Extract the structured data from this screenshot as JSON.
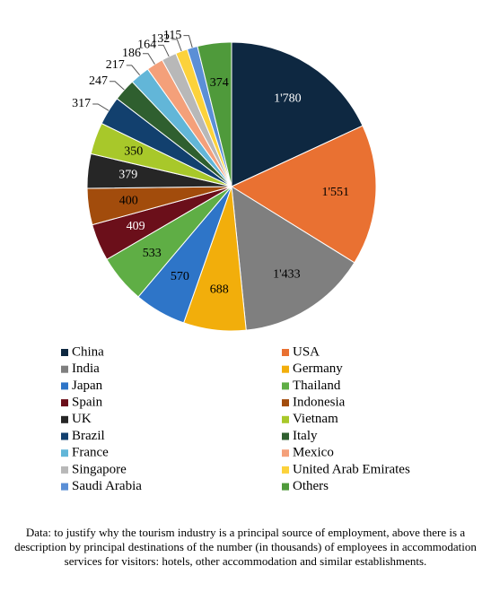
{
  "chart_data": {
    "type": "pie",
    "categories": [
      "China",
      "USA",
      "India",
      "Germany",
      "Japan",
      "Thailand",
      "Spain",
      "Indonesia",
      "UK",
      "Vietnam",
      "Brazil",
      "Italy",
      "France",
      "Mexico",
      "Singapore",
      "United Arab Emirates",
      "Saudi Arabia",
      "Others"
    ],
    "values": [
      1780,
      1551,
      1433,
      688,
      570,
      533,
      409,
      400,
      379,
      350,
      317,
      247,
      217,
      186,
      164,
      132,
      115,
      374
    ],
    "value_labels": [
      "1'780",
      "1'551",
      "1'433",
      "688",
      "570",
      "533",
      "409",
      "400",
      "379",
      "350",
      "317",
      "247",
      "217",
      "186",
      "164",
      "132",
      "115",
      "374"
    ],
    "colors": [
      "#0e2841",
      "#e97132",
      "#7f7f7f",
      "#f2ae0b",
      "#2e75c8",
      "#5fae45",
      "#6b0f1a",
      "#a24c0c",
      "#262626",
      "#a8c82a",
      "#12406e",
      "#2f5f2f",
      "#62b6d8",
      "#f4a07a",
      "#b8b8b8",
      "#fcd23b",
      "#5b8fd6",
      "#4f9a3b"
    ],
    "legend": "bottom",
    "caption": "Data: to justify why the tourism industry is a principal source of employment, above there is a description by principal destinations of the number (in thousands) of employees in accommodation services for visitors: hotels, other accommodation and similar establishments."
  }
}
